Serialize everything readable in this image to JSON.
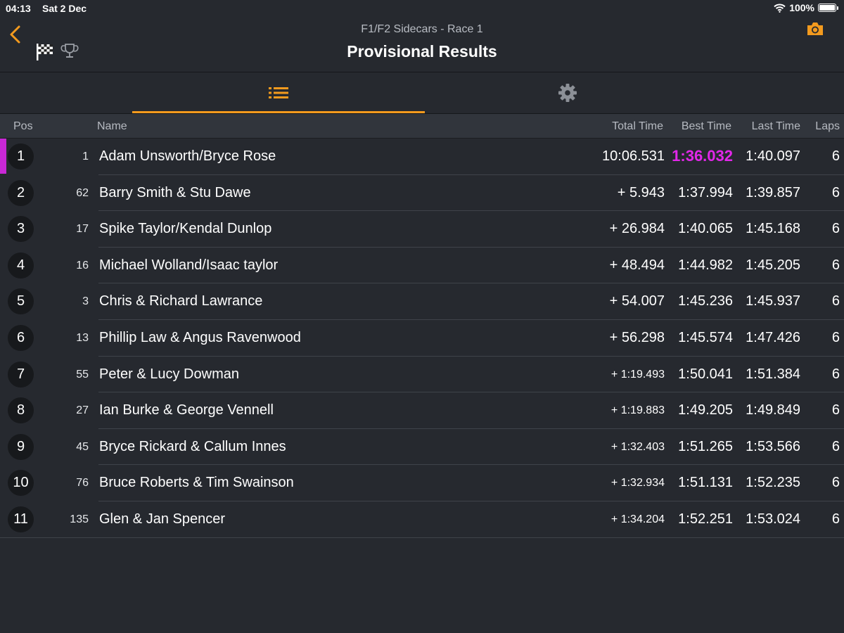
{
  "status": {
    "time": "04:13",
    "date": "Sat 2 Dec",
    "battery": "100%"
  },
  "nav": {
    "subtitle": "F1/F2 Sidecars - Race 1",
    "title": "Provisional Results"
  },
  "colors": {
    "accent": "#f39a1e",
    "fastest": "#e227ea"
  },
  "columns": {
    "pos": "Pos",
    "name": "Name",
    "total": "Total Time",
    "best": "Best Time",
    "last": "Last Time",
    "laps": "Laps"
  },
  "rows": [
    {
      "pos": "1",
      "num": "1",
      "name": "Adam Unsworth/Bryce Rose",
      "total": "10:06.531",
      "best": "1:36.032",
      "last": "1:40.097",
      "laps": "6"
    },
    {
      "pos": "2",
      "num": "62",
      "name": "Barry Smith & Stu Dawe",
      "total": "+ 5.943",
      "best": "1:37.994",
      "last": "1:39.857",
      "laps": "6"
    },
    {
      "pos": "3",
      "num": "17",
      "name": "Spike Taylor/Kendal Dunlop",
      "total": "+ 26.984",
      "best": "1:40.065",
      "last": "1:45.168",
      "laps": "6"
    },
    {
      "pos": "4",
      "num": "16",
      "name": "Michael Wolland/Isaac taylor",
      "total": "+ 48.494",
      "best": "1:44.982",
      "last": "1:45.205",
      "laps": "6"
    },
    {
      "pos": "5",
      "num": "3",
      "name": "Chris & Richard Lawrance",
      "total": "+ 54.007",
      "best": "1:45.236",
      "last": "1:45.937",
      "laps": "6"
    },
    {
      "pos": "6",
      "num": "13",
      "name": "Phillip Law & Angus Ravenwood",
      "total": "+ 56.298",
      "best": "1:45.574",
      "last": "1:47.426",
      "laps": "6"
    },
    {
      "pos": "7",
      "num": "55",
      "name": "Peter & Lucy Dowman",
      "total": "+ 1:19.493",
      "best": "1:50.041",
      "last": "1:51.384",
      "laps": "6"
    },
    {
      "pos": "8",
      "num": "27",
      "name": "Ian Burke & George Vennell",
      "total": "+ 1:19.883",
      "best": "1:49.205",
      "last": "1:49.849",
      "laps": "6"
    },
    {
      "pos": "9",
      "num": "45",
      "name": "Bryce Rickard & Callum Innes",
      "total": "+ 1:32.403",
      "best": "1:51.265",
      "last": "1:53.566",
      "laps": "6"
    },
    {
      "pos": "10",
      "num": "76",
      "name": "Bruce Roberts & Tim Swainson",
      "total": "+ 1:32.934",
      "best": "1:51.131",
      "last": "1:52.235",
      "laps": "6"
    },
    {
      "pos": "11",
      "num": "135",
      "name": "Glen & Jan Spencer",
      "total": "+ 1:34.204",
      "best": "1:52.251",
      "last": "1:53.024",
      "laps": "6"
    }
  ]
}
